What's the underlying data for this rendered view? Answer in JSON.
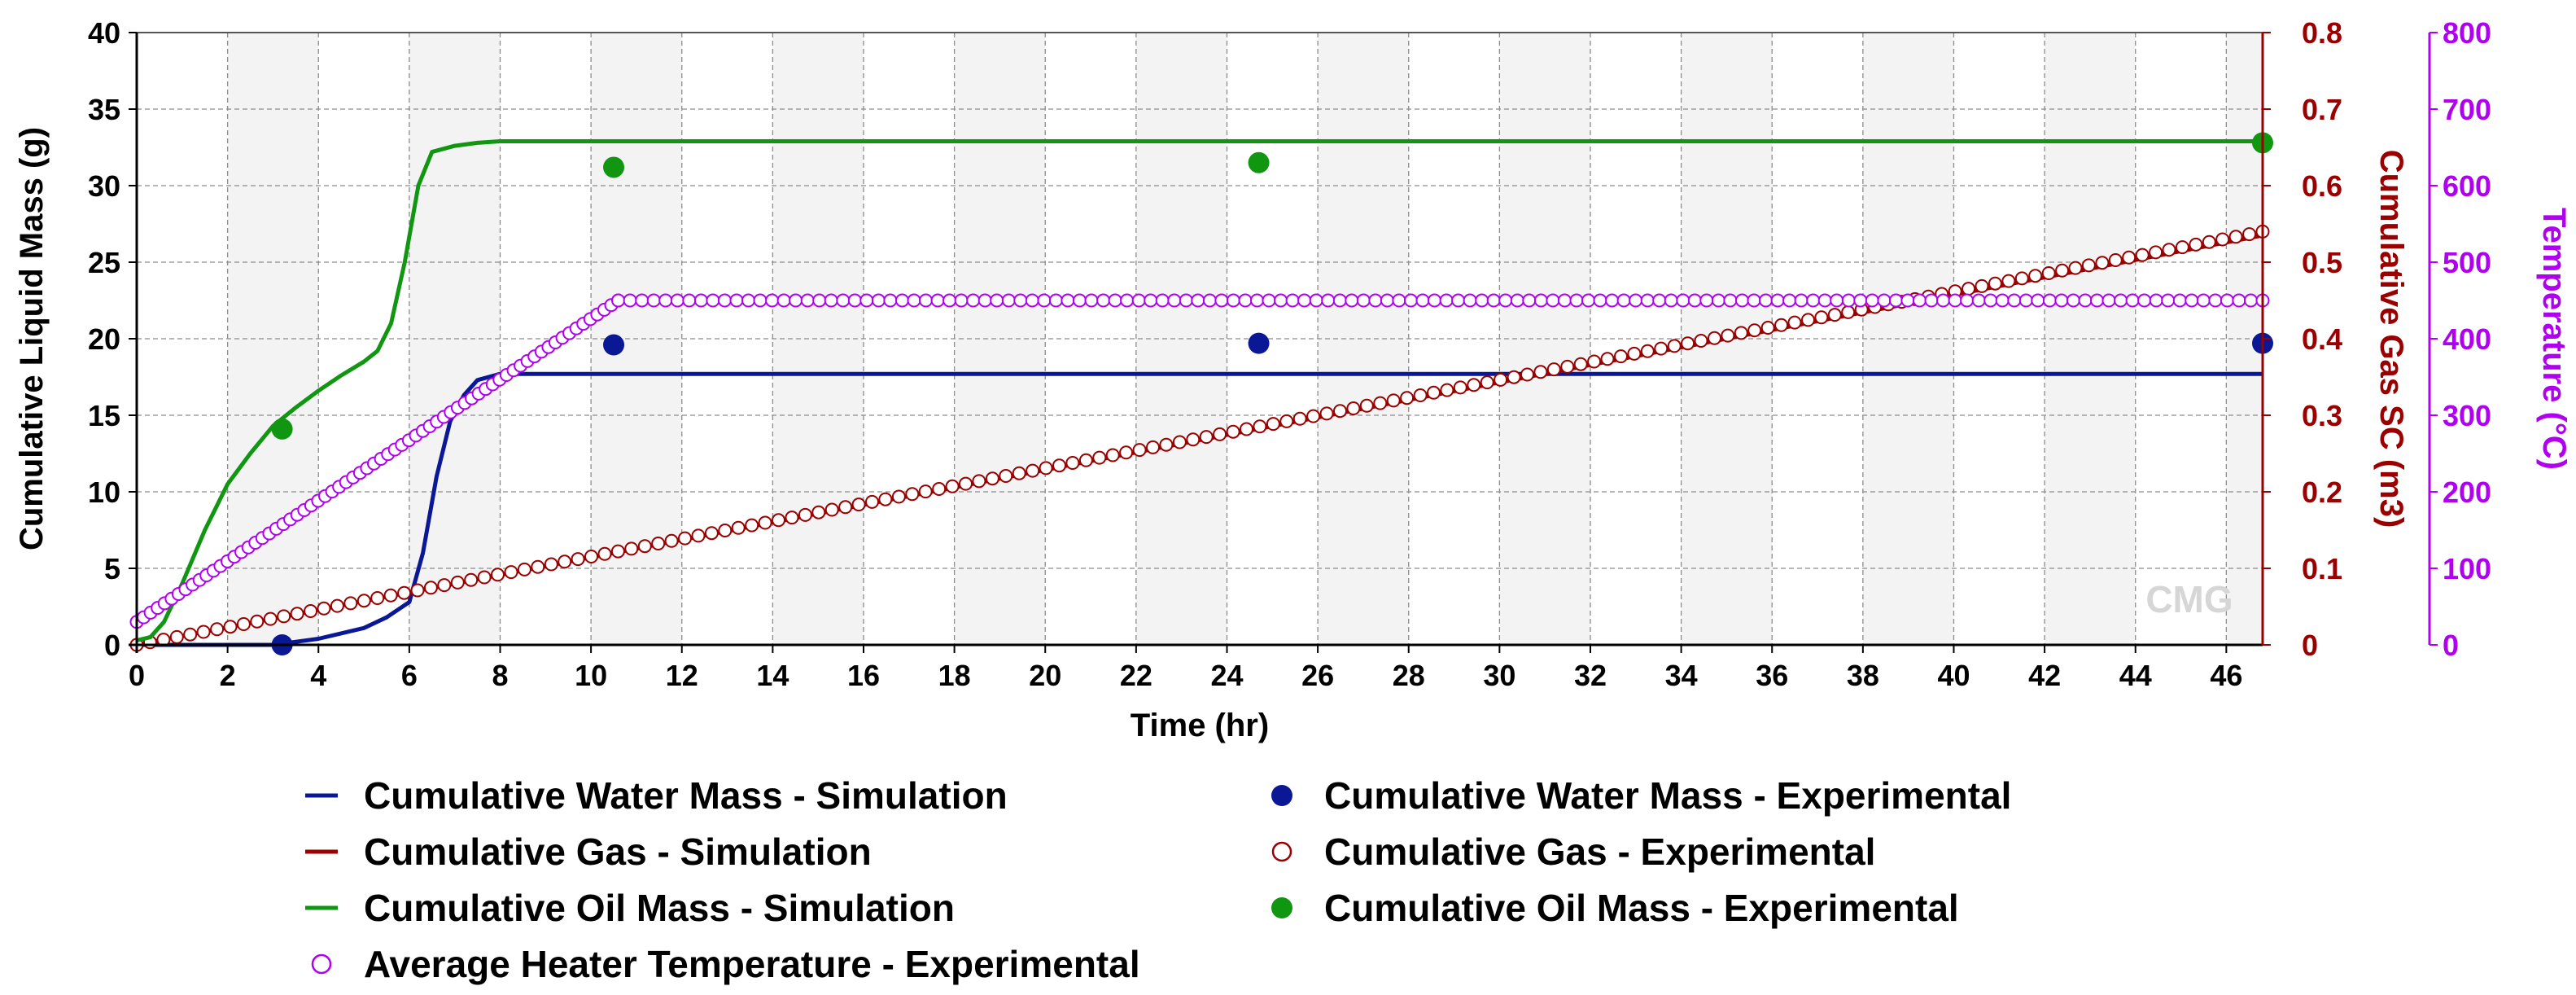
{
  "chart_data": {
    "type": "line",
    "xlabel": "Time (hr)",
    "xlim": [
      0,
      46.8
    ],
    "x_ticks": [
      "0",
      "2",
      "4",
      "6",
      "8",
      "10",
      "12",
      "14",
      "16",
      "18",
      "20",
      "22",
      "24",
      "26",
      "28",
      "30",
      "32",
      "34",
      "36",
      "38",
      "40",
      "42",
      "44",
      "46"
    ],
    "y_left": {
      "label": "Cumulative Liquid Mass (g)",
      "ylim": [
        0,
        40
      ],
      "ticks": [
        "0",
        "5",
        "10",
        "15",
        "20",
        "25",
        "30",
        "35",
        "40"
      ],
      "color": "#000000"
    },
    "y_right1": {
      "label": "Cumulative Gas SC (m3)",
      "ylim": [
        0,
        0.8
      ],
      "ticks": [
        "0",
        "0.1",
        "0.2",
        "0.3",
        "0.4",
        "0.5",
        "0.6",
        "0.7",
        "0.8"
      ],
      "color": "#9b0000"
    },
    "y_right2": {
      "label": "Temperature (°C)",
      "ylim": [
        0,
        800
      ],
      "ticks": [
        "0",
        "100",
        "200",
        "300",
        "400",
        "500",
        "600",
        "700",
        "800"
      ],
      "color": "#b000f0"
    },
    "grid": true,
    "watermark": "CMG",
    "series": [
      {
        "name": "Cumulative Water Mass - Simulation",
        "kind": "line",
        "axis": "left",
        "color": "#0a1896",
        "x": [
          0,
          2,
          3,
          4,
          5,
          5.5,
          6,
          6.3,
          6.6,
          6.9,
          7.2,
          7.5,
          8,
          10,
          20,
          30,
          46.8
        ],
        "y": [
          0,
          0,
          0,
          0.4,
          1.1,
          1.8,
          2.8,
          6,
          11,
          14.6,
          16.3,
          17.3,
          17.7,
          17.7,
          17.7,
          17.7,
          17.7
        ]
      },
      {
        "name": "Cumulative Water Mass - Experimental",
        "kind": "dot",
        "axis": "left",
        "color": "#0a1896",
        "x": [
          3.2,
          10.5,
          24.7,
          46.8
        ],
        "y": [
          0,
          19.6,
          19.7,
          19.7
        ]
      },
      {
        "name": "Cumulative Gas - Simulation",
        "kind": "line",
        "axis": "right1",
        "color": "#9b0000",
        "x": [
          0,
          46.8
        ],
        "y": [
          0,
          0.535
        ]
      },
      {
        "name": "Cumulative Gas - Experimental",
        "kind": "circle",
        "axis": "right1",
        "color": "#9b0000",
        "x_start": 0,
        "x_end": 46.8,
        "count": 160,
        "y_start": 0,
        "y_end": 0.54
      },
      {
        "name": "Cumulative Oil Mass - Simulation",
        "kind": "line",
        "axis": "left",
        "color": "#119611",
        "x": [
          0,
          0.3,
          0.6,
          1,
          1.5,
          2,
          2.5,
          3,
          3.5,
          4,
          4.5,
          5,
          5.3,
          5.6,
          5.9,
          6.2,
          6.5,
          7,
          7.5,
          8,
          46.8
        ],
        "y": [
          0.3,
          0.5,
          1.5,
          4,
          7.5,
          10.5,
          12.5,
          14.3,
          15.5,
          16.6,
          17.6,
          18.5,
          19.2,
          21,
          25,
          30,
          32.2,
          32.6,
          32.8,
          32.9,
          32.9
        ]
      },
      {
        "name": "Cumulative Oil Mass - Experimental",
        "kind": "dot",
        "axis": "left",
        "color": "#119611",
        "x": [
          3.2,
          10.5,
          24.7,
          46.8
        ],
        "y": [
          14.1,
          31.2,
          31.5,
          32.8
        ]
      },
      {
        "name": "Average Heater Temperature - Experimental",
        "kind": "circle",
        "axis": "right2",
        "color": "#b000f0",
        "ramp": {
          "x_start": 0,
          "x_end": 10.6,
          "count": 70,
          "y_start": 30,
          "y_end": 450
        },
        "plateau": {
          "x_start": 10.6,
          "x_end": 46.8,
          "count": 140,
          "y": 450
        }
      }
    ]
  },
  "legend": {
    "items": [
      {
        "label": "Cumulative Water Mass - Simulation",
        "symbol": "line",
        "color": "#0a1896"
      },
      {
        "label": "Cumulative Water Mass - Experimental",
        "symbol": "dot",
        "color": "#0a1896"
      },
      {
        "label": "Cumulative Gas - Simulation",
        "symbol": "line",
        "color": "#9b0000"
      },
      {
        "label": "Cumulative Gas - Experimental",
        "symbol": "circle",
        "color": "#9b0000"
      },
      {
        "label": "Cumulative Oil Mass - Simulation",
        "symbol": "line",
        "color": "#119611"
      },
      {
        "label": "Cumulative Oil Mass - Experimental",
        "symbol": "dot",
        "color": "#119611"
      },
      {
        "label": "Average Heater Temperature - Experimental",
        "symbol": "circle",
        "color": "#b000f0"
      }
    ]
  }
}
